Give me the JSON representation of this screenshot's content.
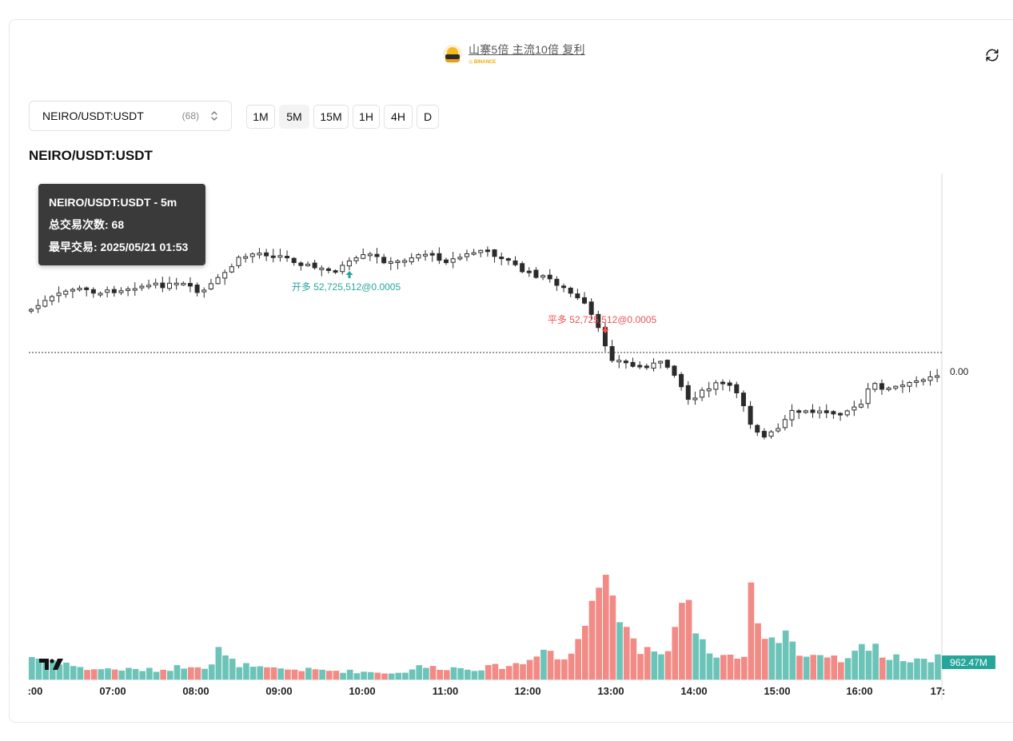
{
  "header": {
    "title": "山寨5倍 主流10倍 复利",
    "exchange": "BINANCE"
  },
  "selector": {
    "symbol": "NEIRO/USDT:USDT",
    "count": "(68)"
  },
  "timeframes": [
    {
      "label": "1M",
      "active": false
    },
    {
      "label": "5M",
      "active": true
    },
    {
      "label": "15M",
      "active": false
    },
    {
      "label": "1H",
      "active": false
    },
    {
      "label": "4H",
      "active": false
    },
    {
      "label": "D",
      "active": false
    }
  ],
  "chart_title": "NEIRO/USDT:USDT",
  "tooltip": {
    "line1": "NEIRO/USDT:USDT - 5m",
    "line2": "总交易次数: 68",
    "line3": "最早交易: 2025/05/21 01:53"
  },
  "chart_data": {
    "type": "candlestick",
    "interval": "5m",
    "x_axis_ticks": [
      ":00",
      "07:00",
      "08:00",
      "09:00",
      "10:00",
      "11:00",
      "12:00",
      "13:00",
      "14:00",
      "15:00",
      "16:00",
      "17:"
    ],
    "price_axis_label": "0.00",
    "volume_label": "962.47M",
    "markers": [
      {
        "side": "open_long",
        "text": "开多 52,725,512@0.0005",
        "time": "09:55",
        "color": "#26a69a"
      },
      {
        "side": "close_long",
        "text": "平多 52,725,512@0.0005",
        "time": "12:55",
        "color": "#ef5350"
      }
    ],
    "colors": {
      "up": "#ffffff",
      "down": "#2b2b2b",
      "vol_up": "#6cc4b8",
      "vol_down": "#f28a85",
      "badge": "#26a69a"
    }
  }
}
